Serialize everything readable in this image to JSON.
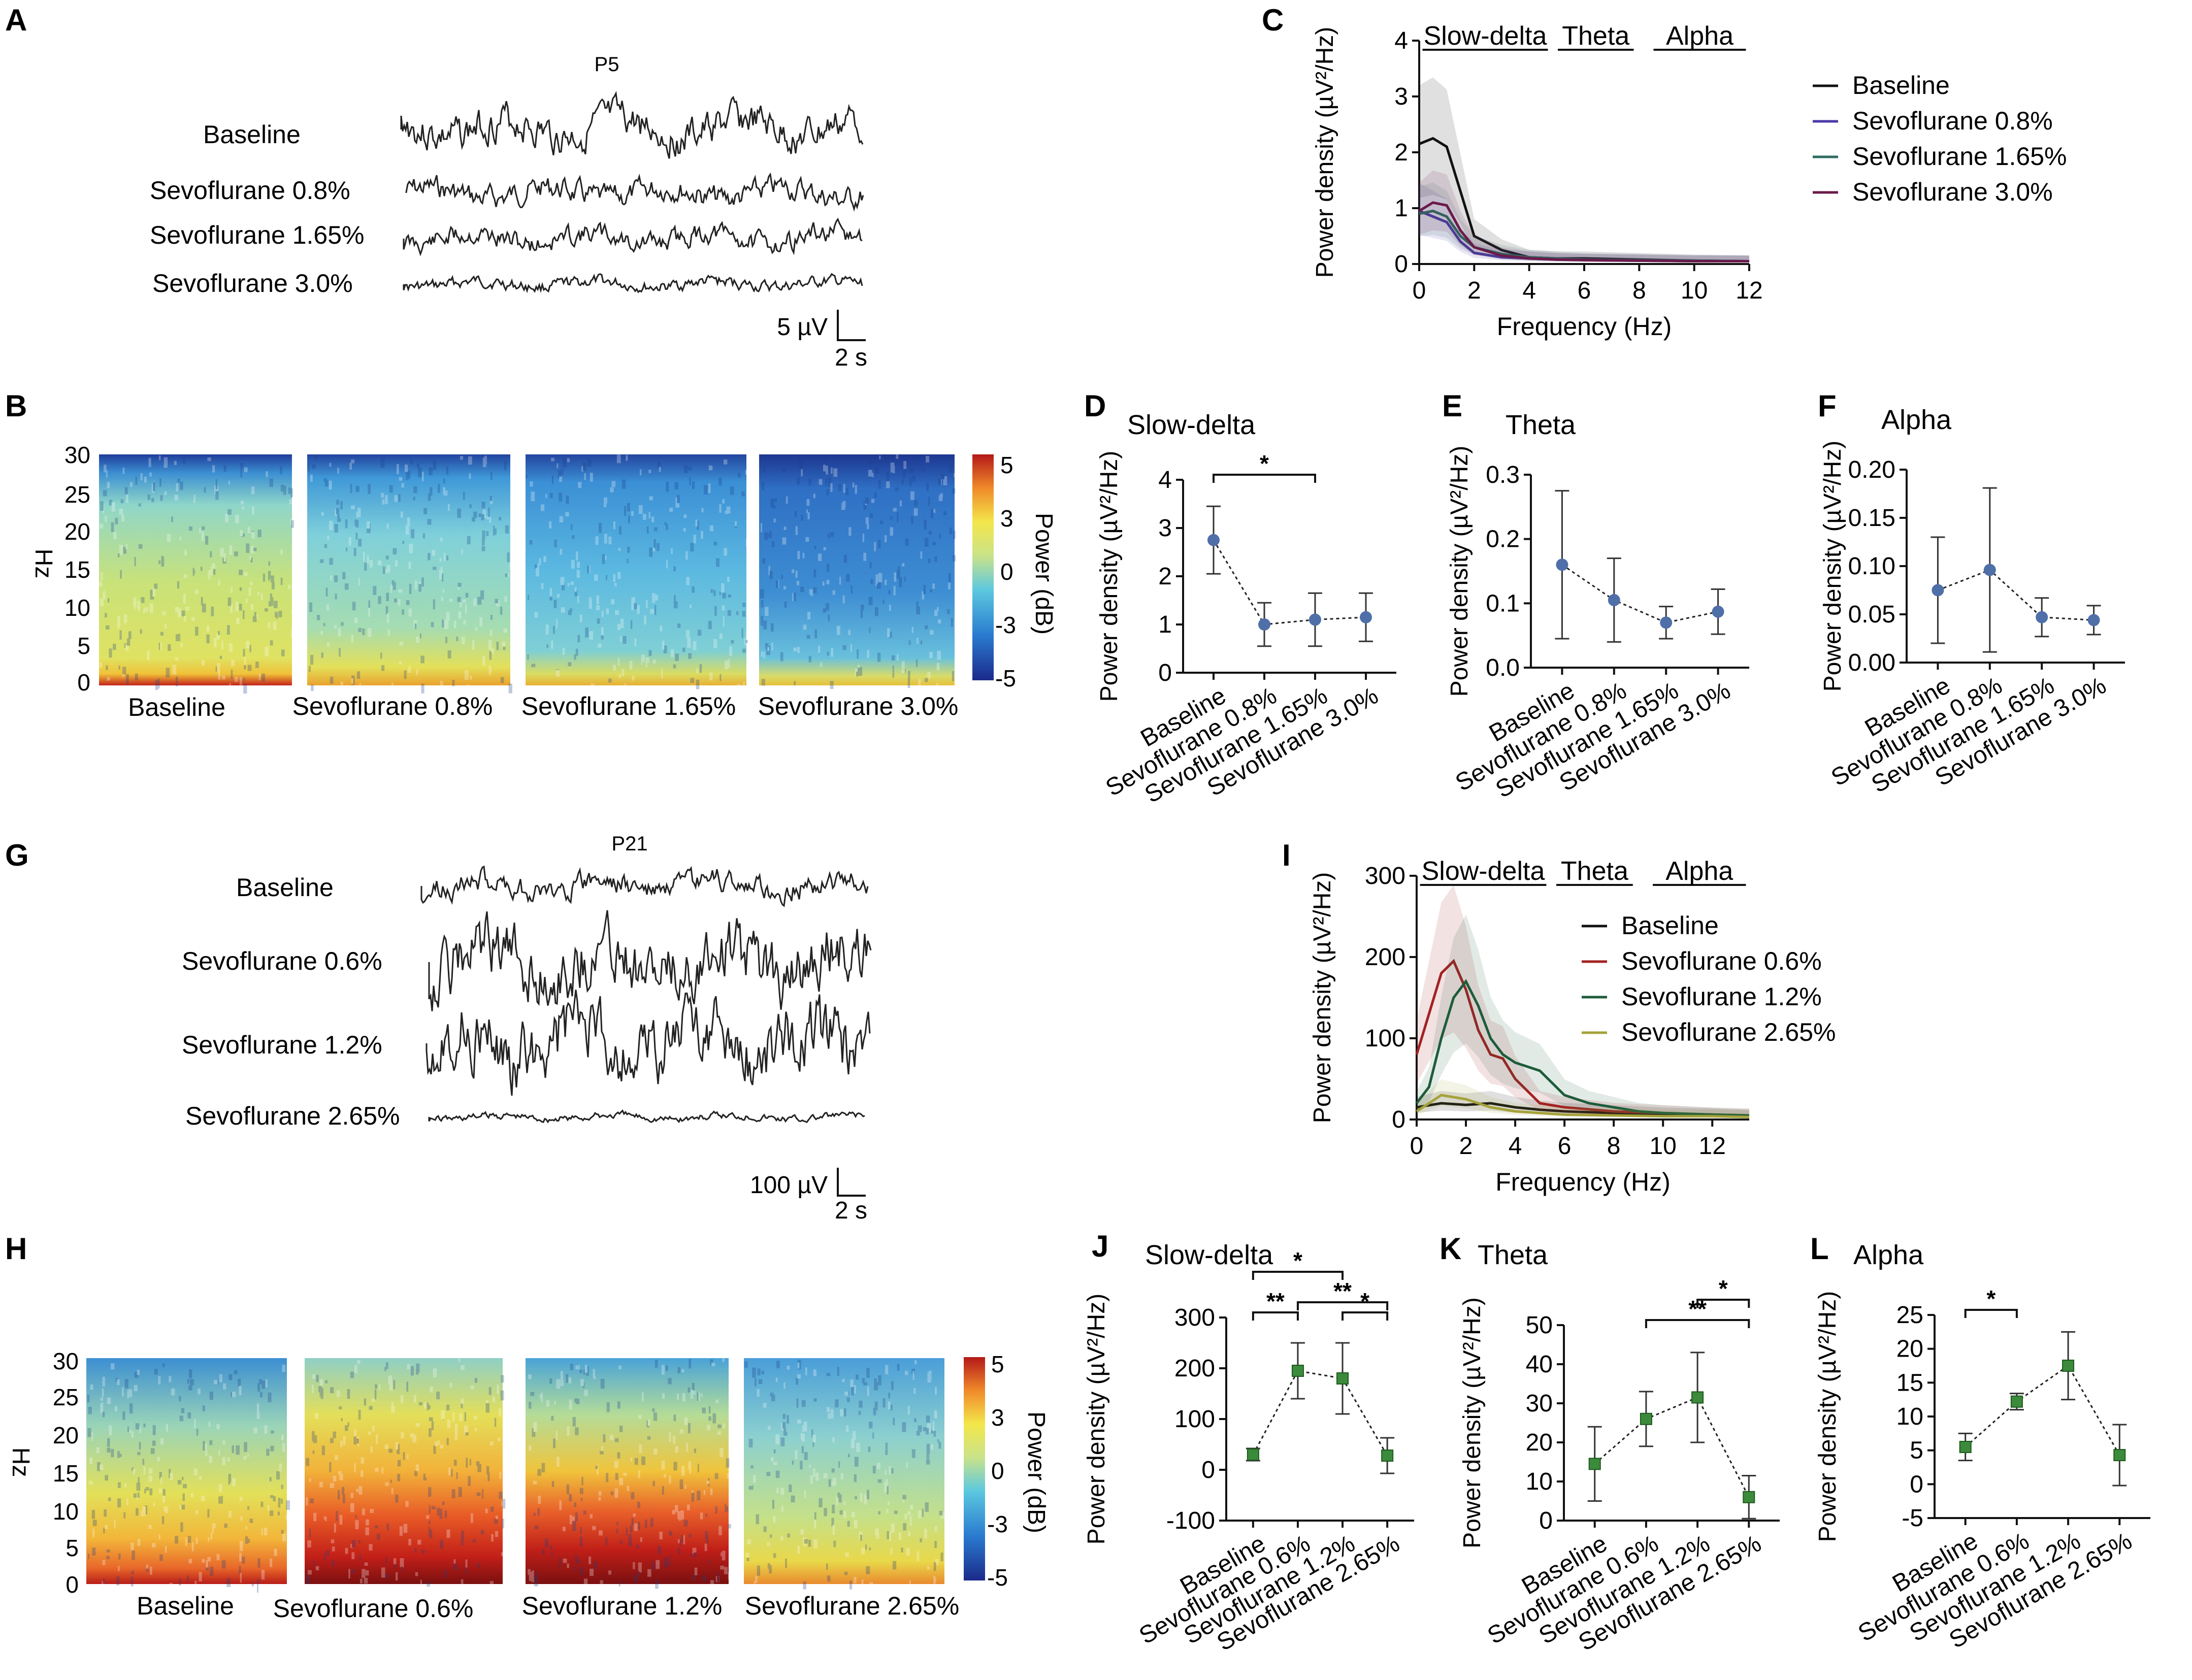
{
  "panels": {
    "A": {
      "letter": "A",
      "title": "P5",
      "labels": [
        "Baseline",
        "Sevoflurane  0.8%",
        "Sevoflurane  1.65%",
        "Sevoflurane  3.0%"
      ],
      "scale_v": "5 µV",
      "scale_t": "2 s"
    },
    "G": {
      "letter": "G",
      "title": "P21",
      "labels": [
        "Baseline",
        "Sevoflurane 0.6%",
        "Sevoflurane 1.2%",
        "Sevoflurane 2.65%"
      ],
      "scale_v": "100 µV",
      "scale_t": "2 s"
    },
    "B": {
      "letter": "B",
      "ylabel": "Hz",
      "yticks": [
        "30",
        "25",
        "20",
        "15",
        "10",
        "5",
        "0"
      ],
      "labels": [
        "Baseline",
        "Sevoflurane 0.8%",
        "Sevoflurane  1.65%",
        "Sevoflurane  3.0%"
      ],
      "cbar_label": "Power (dB)",
      "cbar_ticks": [
        "5",
        "3",
        "0",
        "-3",
        "-5"
      ]
    },
    "H": {
      "letter": "H",
      "ylabel": "Hz",
      "yticks": [
        "30",
        "25",
        "20",
        "15",
        "10",
        "5",
        "0"
      ],
      "labels": [
        "Baseline",
        "Sevoflurane 0.6%",
        "Sevoflurane 1.2%",
        "Sevoflurane 2.65%"
      ],
      "cbar_label": "Power (dB)",
      "cbar_ticks": [
        "5",
        "3",
        "0",
        "-3",
        "-5"
      ]
    }
  },
  "chart_data": [
    {
      "id": "C",
      "type": "line",
      "xlabel": "Frequency (Hz)",
      "ylabel": "Power density (µV²/Hz)",
      "ylim": [
        0,
        4
      ],
      "xlim": [
        0,
        12
      ],
      "xticks": [
        "0",
        "2",
        "4",
        "6",
        "8",
        "10",
        "12"
      ],
      "yticks": [
        "0",
        "1",
        "2",
        "3",
        "4"
      ],
      "bands": [
        "Slow-delta",
        "Theta",
        "Alpha"
      ],
      "series": [
        {
          "name": "Baseline",
          "color": "#111111",
          "x": [
            0,
            0.5,
            1,
            1.5,
            2,
            3,
            4,
            5,
            6,
            8,
            10,
            12
          ],
          "y": [
            2.15,
            2.25,
            2.1,
            1.3,
            0.5,
            0.25,
            0.12,
            0.1,
            0.1,
            0.08,
            0.06,
            0.05
          ]
        },
        {
          "name": "Sevoflurane 0.8%",
          "color": "#4a3aa8",
          "x": [
            0,
            0.5,
            1,
            1.5,
            2,
            3,
            4,
            5,
            6,
            8,
            10,
            12
          ],
          "y": [
            0.95,
            0.85,
            0.75,
            0.4,
            0.2,
            0.12,
            0.1,
            0.08,
            0.07,
            0.06,
            0.05,
            0.05
          ]
        },
        {
          "name": "Sevoflurane  1.65%",
          "color": "#2f6b62",
          "x": [
            0,
            0.5,
            1,
            1.5,
            2,
            3,
            4,
            5,
            6,
            8,
            10,
            12
          ],
          "y": [
            0.9,
            0.95,
            0.85,
            0.5,
            0.3,
            0.18,
            0.12,
            0.1,
            0.08,
            0.07,
            0.06,
            0.05
          ]
        },
        {
          "name": "Sevoflurane  3.0%",
          "color": "#6b1a4a",
          "x": [
            0,
            0.5,
            1,
            1.5,
            2,
            3,
            4,
            5,
            6,
            8,
            10,
            12
          ],
          "y": [
            0.95,
            1.1,
            1.05,
            0.6,
            0.3,
            0.15,
            0.1,
            0.08,
            0.07,
            0.06,
            0.05,
            0.05
          ]
        }
      ]
    },
    {
      "id": "D",
      "type": "scatter",
      "title": "Slow-delta",
      "ylabel": "Power density (µV²/Hz)",
      "ylim": [
        0,
        4
      ],
      "yticks": [
        "0",
        "1",
        "2",
        "3",
        "4"
      ],
      "categories": [
        "Baseline",
        "Sevoflurane 0.8%",
        "Sevoflurane 1.65%",
        "Sevoflurane 3.0%"
      ],
      "values": [
        2.75,
        1.0,
        1.1,
        1.15
      ],
      "err": [
        0.7,
        0.45,
        0.55,
        0.5
      ],
      "sig": [
        {
          "a": 0,
          "b": 2,
          "label": "*"
        }
      ]
    },
    {
      "id": "E",
      "type": "scatter",
      "title": "Theta",
      "ylabel": "Power density (µV²/Hz)",
      "ylim": [
        0,
        0.3
      ],
      "yticks": [
        "0.0",
        "0.1",
        "0.2",
        "0.3"
      ],
      "categories": [
        "Baseline",
        "Sevoflurane 0.8%",
        "Sevoflurane 1.65%",
        "Sevoflurane 3.0%"
      ],
      "values": [
        0.16,
        0.105,
        0.07,
        0.087
      ],
      "err": [
        0.115,
        0.065,
        0.025,
        0.035
      ],
      "sig": []
    },
    {
      "id": "F",
      "type": "scatter",
      "title": "Alpha",
      "ylabel": "Power density (µV²/Hz)",
      "ylim": [
        0,
        0.2
      ],
      "yticks": [
        "0.00",
        "0.05",
        "0.10",
        "0.15",
        "0.20"
      ],
      "categories": [
        "Baseline",
        "Sevoflurane 0.8%",
        "Sevoflurane 1.65%",
        "Sevoflurane 3.0%"
      ],
      "values": [
        0.075,
        0.096,
        0.047,
        0.044
      ],
      "err": [
        0.055,
        0.085,
        0.02,
        0.015
      ],
      "sig": []
    },
    {
      "id": "I",
      "type": "line",
      "xlabel": "Frequency (Hz)",
      "ylabel": "Power density (µV²/Hz)",
      "ylim": [
        0,
        300
      ],
      "xlim": [
        0,
        13.5
      ],
      "xticks": [
        "0",
        "2",
        "4",
        "6",
        "8",
        "10",
        "12"
      ],
      "yticks": [
        "0",
        "100",
        "200",
        "300"
      ],
      "bands": [
        "Slow-delta",
        "Theta",
        "Alpha"
      ],
      "series": [
        {
          "name": "Baseline",
          "color": "#111111",
          "x": [
            0,
            1,
            2,
            3,
            4,
            5,
            6,
            8,
            10,
            12,
            13.5
          ],
          "y": [
            15,
            20,
            18,
            20,
            15,
            12,
            10,
            8,
            6,
            5,
            4
          ]
        },
        {
          "name": "Sevoflurane 0.6%",
          "color": "#a32222",
          "x": [
            0,
            0.5,
            1,
            1.5,
            2,
            2.5,
            3,
            3.5,
            4,
            5,
            6,
            8,
            10,
            12,
            13.5
          ],
          "y": [
            80,
            130,
            180,
            195,
            160,
            110,
            80,
            75,
            50,
            20,
            15,
            10,
            8,
            6,
            5
          ]
        },
        {
          "name": "Sevoflurane 1.2%",
          "color": "#1d5c3a",
          "x": [
            0,
            0.5,
            1,
            1.5,
            2,
            2.5,
            3,
            3.5,
            4,
            5,
            6,
            7,
            8,
            9,
            10,
            12,
            13.5
          ],
          "y": [
            20,
            40,
            100,
            150,
            170,
            140,
            100,
            80,
            70,
            60,
            30,
            20,
            15,
            10,
            8,
            6,
            5
          ]
        },
        {
          "name": "Sevoflurane 2.65%",
          "color": "#a5a23a",
          "x": [
            0,
            1,
            2,
            3,
            4,
            5,
            6,
            8,
            10,
            12,
            13.5
          ],
          "y": [
            10,
            30,
            25,
            15,
            10,
            8,
            6,
            5,
            4,
            4,
            3
          ]
        }
      ]
    },
    {
      "id": "J",
      "type": "scatter",
      "title": "Slow-delta",
      "ylabel": "Power density (µV²/Hz)",
      "ylim": [
        -100,
        300
      ],
      "yticks": [
        "-100",
        "0",
        "100",
        "200",
        "300"
      ],
      "categories": [
        "Baseline",
        "Sevoflurane 0.6%",
        "Sevoflurane 1.2%",
        "Sevoflurane 2.65%"
      ],
      "values": [
        30,
        195,
        180,
        28
      ],
      "err": [
        12,
        55,
        70,
        35
      ],
      "sig": [
        {
          "a": 0,
          "b": 1,
          "label": "**"
        },
        {
          "a": 1,
          "b": 3,
          "label": "**"
        },
        {
          "a": 2,
          "b": 3,
          "label": "*"
        },
        {
          "a": 0,
          "b": 2,
          "label": "*"
        }
      ]
    },
    {
      "id": "K",
      "type": "scatter",
      "title": "Theta",
      "ylabel": "Power density (µV²/Hz)",
      "ylim": [
        0,
        50
      ],
      "yticks": [
        "0",
        "10",
        "20",
        "30",
        "40",
        "50"
      ],
      "categories": [
        "Baseline",
        "Sevoflurane 0.6%",
        "Sevoflurane 1.2%",
        "Sevoflurane 2.65%"
      ],
      "values": [
        14.5,
        26,
        31.5,
        6
      ],
      "err": [
        9.5,
        7,
        11.5,
        5.5
      ],
      "sig": [
        {
          "a": 1,
          "b": 3,
          "label": "**"
        },
        {
          "a": 2,
          "b": 3,
          "label": "*"
        }
      ]
    },
    {
      "id": "L",
      "type": "scatter",
      "title": "Alpha",
      "ylabel": "Power density (µV²/Hz)",
      "ylim": [
        -5,
        25
      ],
      "yticks": [
        "-5",
        "0",
        "5",
        "10",
        "15",
        "20",
        "25"
      ],
      "categories": [
        "Baseline",
        "Sevoflurane 0.6%",
        "Sevoflurane 1.2%",
        "Sevoflurane 2.65%"
      ],
      "values": [
        5.5,
        12.2,
        17.5,
        4.3
      ],
      "err": [
        2,
        1.2,
        5,
        4.5
      ],
      "sig": [
        {
          "a": 0,
          "b": 1,
          "label": "*"
        }
      ]
    }
  ],
  "colors": {
    "marker_top": "#4f6fa8",
    "marker_bottom": "#3c8a3c"
  }
}
